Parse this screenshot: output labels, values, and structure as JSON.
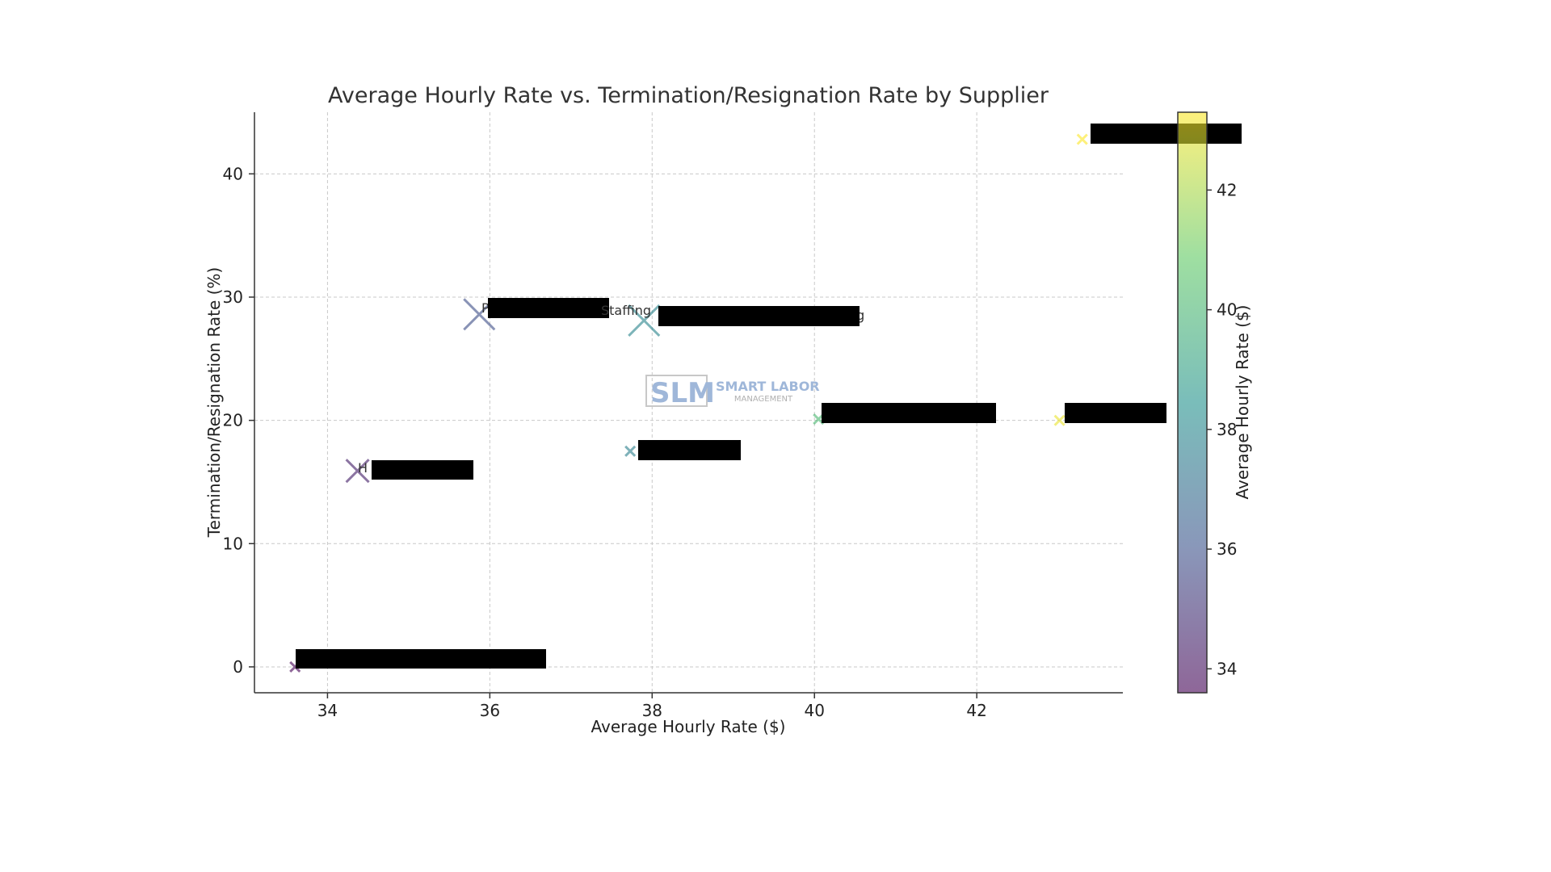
{
  "chart_data": {
    "type": "scatter",
    "title": "Average Hourly Rate vs. Termination/Resignation Rate by Supplier",
    "xlabel": "Average Hourly Rate ($)",
    "ylabel": "Termination/Resignation Rate (%)",
    "xlim": [
      33.1,
      43.8
    ],
    "ylim": [
      -2.1,
      45
    ],
    "xticks": [
      34,
      36,
      38,
      40,
      42
    ],
    "yticks": [
      0,
      10,
      20,
      30,
      40
    ],
    "grid": true,
    "marker": "x",
    "points": [
      {
        "x": 33.6,
        "y": 0.0,
        "label": "",
        "redacted": true,
        "size": "small"
      },
      {
        "x": 34.37,
        "y": 15.9,
        "label": "H",
        "redacted": true,
        "size": "medium"
      },
      {
        "x": 35.87,
        "y": 28.6,
        "label": "P",
        "redacted": true,
        "size": "large"
      },
      {
        "x": 37.73,
        "y": 17.5,
        "label": "",
        "redacted": true,
        "size": "small"
      },
      {
        "x": 37.9,
        "y": 28.1,
        "label": "ng",
        "redacted": true,
        "size": "large"
      },
      {
        "x": 40.05,
        "y": 20.1,
        "label": "",
        "redacted": true,
        "size": "small"
      },
      {
        "x": 43.02,
        "y": 20.0,
        "label": "",
        "redacted": true,
        "size": "small"
      },
      {
        "x": 43.3,
        "y": 42.8,
        "label": "",
        "redacted": true,
        "size": "small"
      }
    ],
    "stray_label": "Staffing",
    "colorbar": {
      "label": "Average Hourly Rate ($)",
      "range": [
        33.6,
        43.3
      ],
      "ticks": [
        34,
        36,
        38,
        40,
        42
      ],
      "colors": [
        "#440154",
        "#3b528b",
        "#21918c",
        "#5ec962",
        "#fde725"
      ],
      "alpha": 0.6
    }
  },
  "watermark": {
    "mark": "SLM",
    "name": "SMART LABOR",
    "sub": "MANAGEMENT"
  }
}
